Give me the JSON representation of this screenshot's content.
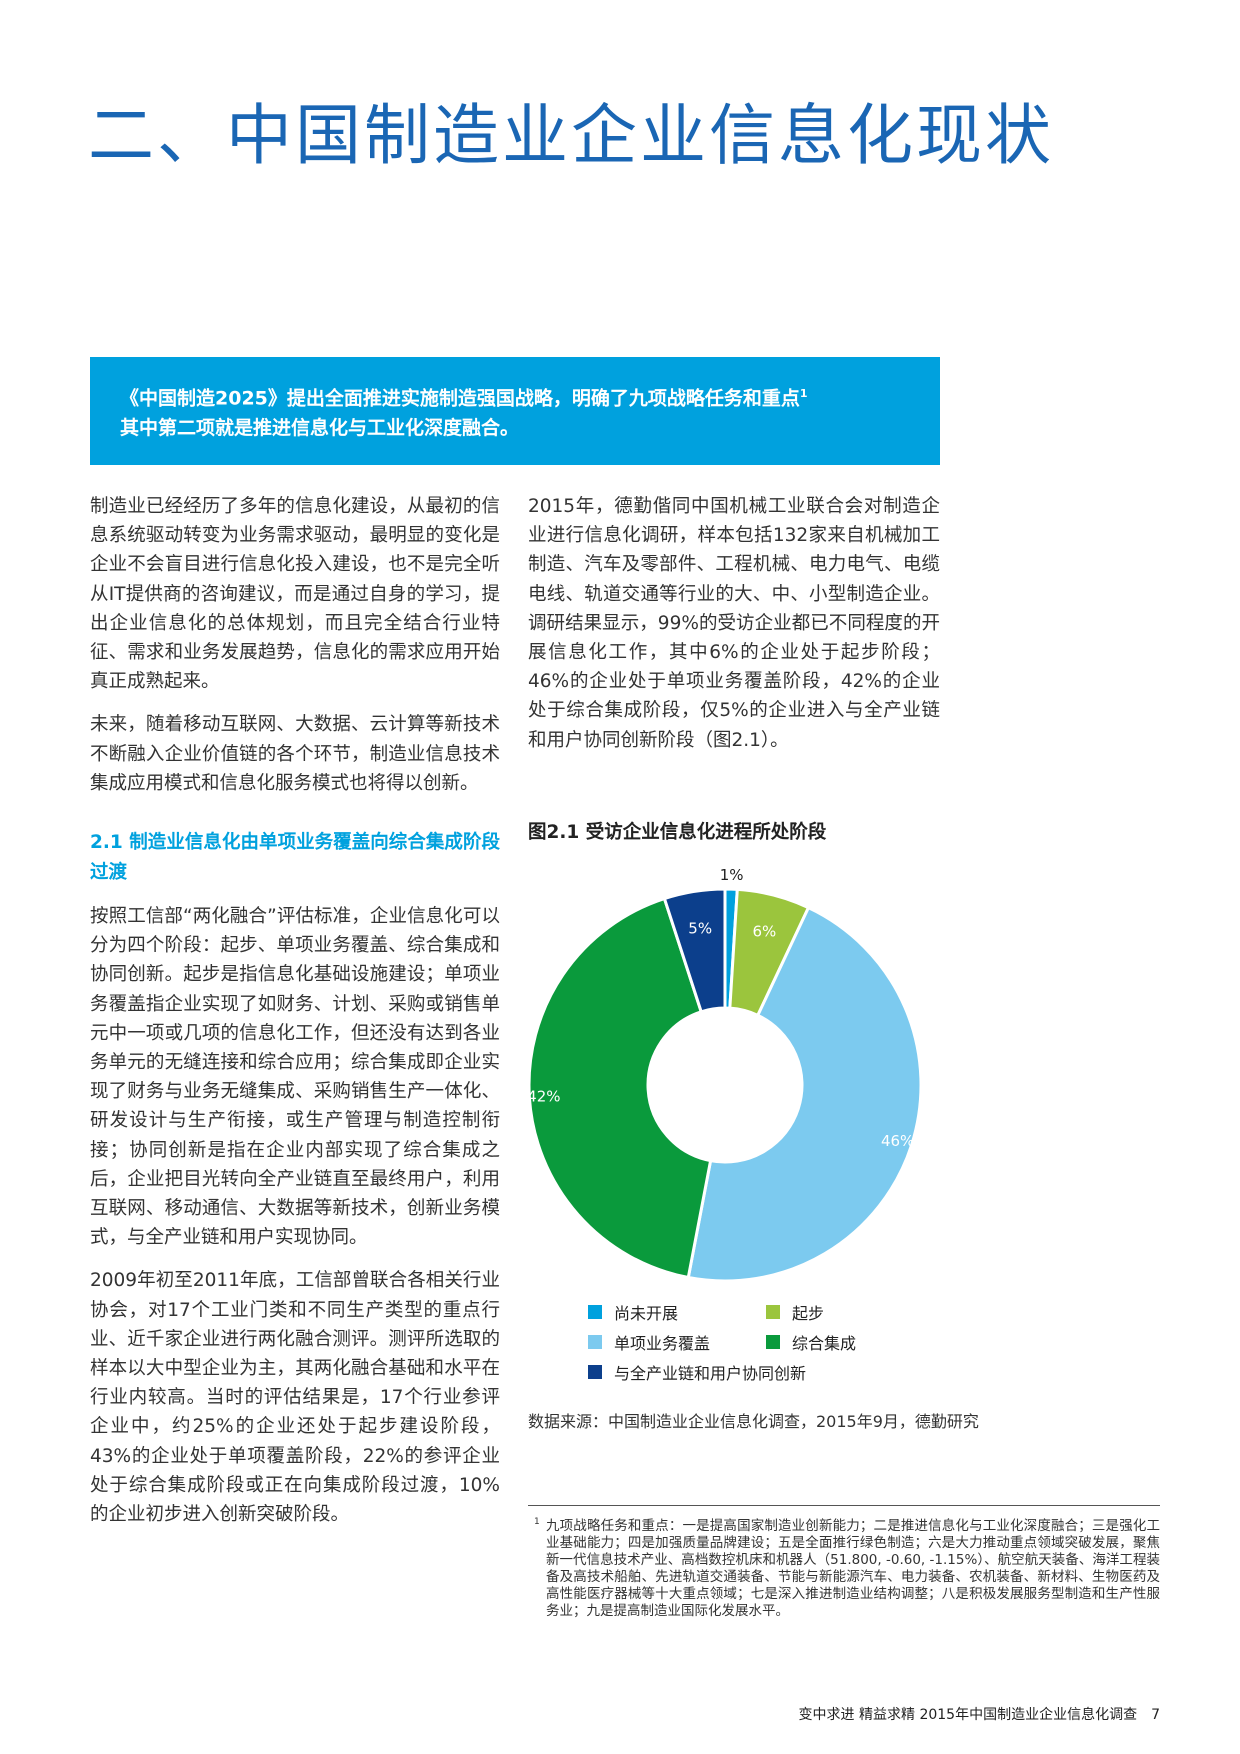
{
  "title": "二、中国制造业企业信息化现状",
  "callout": {
    "line1": "《中国制造2025》提出全面推进实施制造强国战略，明确了九项战略任务和重点",
    "sup": "1",
    "line2": "其中第二项就是推进信息化与工业化深度融合。"
  },
  "left": {
    "p1": "制造业已经经历了多年的信息化建设，从最初的信息系统驱动转变为业务需求驱动，最明显的变化是企业不会盲目进行信息化投入建设，也不是完全听从IT提供商的咨询建议，而是通过自身的学习，提出企业信息化的总体规划，而且完全结合行业特征、需求和业务发展趋势，信息化的需求应用开始真正成熟起来。",
    "p2": "未来，随着移动互联网、大数据、云计算等新技术不断融入企业价值链的各个环节，制造业信息技术集成应用模式和信息化服务模式也将得以创新。",
    "subhead": "2.1 制造业信息化由单项业务覆盖向综合集成阶段过渡",
    "p3": "按照工信部“两化融合”评估标准，企业信息化可以分为四个阶段：起步、单项业务覆盖、综合集成和协同创新。起步是指信息化基础设施建设；单项业务覆盖指企业实现了如财务、计划、采购或销售单元中一项或几项的信息化工作，但还没有达到各业务单元的无缝连接和综合应用；综合集成即企业实现了财务与业务无缝集成、采购销售生产一体化、研发设计与生产衔接，或生产管理与制造控制衔接；协同创新是指在企业内部实现了综合集成之后，企业把目光转向全产业链直至最终用户，利用互联网、移动通信、大数据等新技术，创新业务模式，与全产业链和用户实现协同。",
    "p4": "2009年初至2011年底，工信部曾联合各相关行业协会，对17个工业门类和不同生产类型的重点行业、近千家企业进行两化融合测评。测评所选取的样本以大中型企业为主，其两化融合基础和水平在行业内较高。当时的评估结果是，17个行业参评企业中，约25%的企业还处于起步建设阶段，43%的企业处于单项覆盖阶段，22%的参评企业处于综合集成阶段或正在向集成阶段过渡，10%的企业初步进入创新突破阶段。"
  },
  "right": {
    "p1": "2015年，德勤偕同中国机械工业联合会对制造企业进行信息化调研，样本包括132家来自机械加工制造、汽车及零部件、工程机械、电力电气、电缆电线、轨道交通等行业的大、中、小型制造企业。调研结果显示，99%的受访企业都已不同程度的开展信息化工作，其中6%的企业处于起步阶段；46%的企业处于单项业务覆盖阶段，42%的企业处于综合集成阶段，仅5%的企业进入与全产业链和用户协同创新阶段（图2.1）。"
  },
  "chart_data": {
    "type": "pie",
    "donut": true,
    "title": "图2.1 受访企业信息化进程所处阶段",
    "categories": [
      "尚未开展",
      "起步",
      "单项业务覆盖",
      "综合集成",
      "与全产业链和用户协同创新"
    ],
    "values": [
      1,
      6,
      46,
      42,
      5
    ],
    "labels": [
      "1%",
      "6%",
      "46%",
      "42%",
      "5%"
    ],
    "colors": [
      "#00a1de",
      "#9bc53d",
      "#7ccaef",
      "#0a9a3c",
      "#0c3f8c"
    ],
    "legend": "bottom",
    "source": "数据来源：中国制造业企业信息化调查，2015年9月，德勤研究"
  },
  "footnote": {
    "mark": "1",
    "text": "九项战略任务和重点：一是提高国家制造业创新能力；二是推进信息化与工业化深度融合；三是强化工业基础能力；四是加强质量品牌建设；五是全面推行绿色制造；六是大力推动重点领域突破发展，聚焦新一代信息技术产业、高档数控机床和机器人（51.800, -0.60, -1.15%）、航空航天装备、海洋工程装备及高技术船舶、先进轨道交通装备、节能与新能源汽车、电力装备、农机装备、新材料、生物医药及高性能医疗器械等十大重点领域；七是深入推进制造业结构调整；八是积极发展服务型制造和生产性服务业；九是提高制造业国际化发展水平。"
  },
  "footer": {
    "text": "变中求进 精益求精  2015年中国制造业企业信息化调查",
    "page": "7"
  }
}
